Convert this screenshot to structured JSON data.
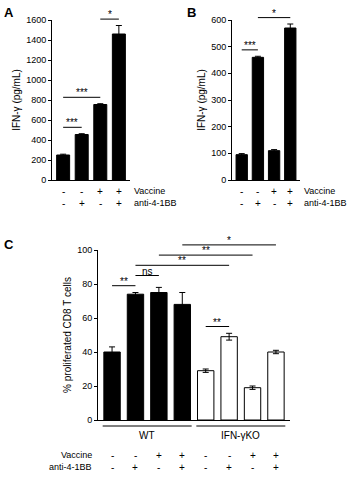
{
  "chart_data": [
    {
      "type": "bar",
      "title": "A",
      "y_label": "IFN-γ (pg/mL)",
      "categories": [
        null,
        null,
        null,
        null
      ],
      "values": [
        250,
        455,
        755,
        1460
      ],
      "errors": [
        8,
        8,
        8,
        85
      ],
      "color": "#000000",
      "grid": false,
      "ylim": [
        0,
        1600
      ],
      "yticks": [
        0,
        200,
        400,
        600,
        800,
        1000,
        1200,
        1400,
        1600
      ],
      "condition_rows": [
        {
          "label": "Vaccine",
          "marks": [
            "-",
            "-",
            "+",
            "+"
          ]
        },
        {
          "label": "anti-4-1BB",
          "marks": [
            "-",
            "+",
            "-",
            "+"
          ]
        }
      ],
      "comparisons": [
        {
          "from": 0,
          "to": 1,
          "label": "***"
        },
        {
          "from": 0,
          "to": 2,
          "label": "***"
        },
        {
          "from": 2,
          "to": 3,
          "label": "*"
        }
      ]
    },
    {
      "type": "bar",
      "title": "B",
      "y_label": "IFN-γ (pg/mL)",
      "categories": [
        null,
        null,
        null,
        null
      ],
      "values": [
        95,
        460,
        110,
        570
      ],
      "errors": [
        4,
        4,
        4,
        15
      ],
      "color": "#000000",
      "grid": false,
      "ylim": [
        0,
        600
      ],
      "yticks": [
        0,
        100,
        200,
        300,
        400,
        500,
        600
      ],
      "condition_rows": [
        {
          "label": "Vaccine",
          "marks": [
            "-",
            "-",
            "+",
            "+"
          ]
        },
        {
          "label": "anti-4-1BB",
          "marks": [
            "-",
            "+",
            "-",
            "+"
          ]
        }
      ],
      "comparisons": [
        {
          "from": 0,
          "to": 1,
          "label": "***"
        },
        {
          "from": 1,
          "to": 3,
          "label": "*"
        }
      ]
    },
    {
      "type": "bar",
      "title": "C",
      "y_label": "% proliferated CD8 T cells",
      "categories": [
        null,
        null,
        null,
        null,
        null,
        null,
        null,
        null
      ],
      "values": [
        40,
        74,
        75,
        68,
        29,
        49,
        19,
        40
      ],
      "errors": [
        3,
        1,
        3,
        7,
        1,
        2,
        1,
        1
      ],
      "colors": [
        "#000000",
        "#000000",
        "#000000",
        "#000000",
        "#ffffff",
        "#ffffff",
        "#ffffff",
        "#ffffff"
      ],
      "grid": false,
      "ylim": [
        0,
        100
      ],
      "yticks": [
        0,
        20,
        40,
        60,
        80,
        100
      ],
      "groups": [
        {
          "label": "WT",
          "from": 0,
          "to": 3
        },
        {
          "label": "IFN-γKO",
          "from": 4,
          "to": 7
        }
      ],
      "condition_rows": [
        {
          "label": "Vaccine",
          "marks": [
            "-",
            "-",
            "+",
            "+",
            "-",
            "-",
            "+",
            "+"
          ]
        },
        {
          "label": "anti-4-1BB",
          "marks": [
            "-",
            "+",
            "-",
            "+",
            "-",
            "+",
            "-",
            "+"
          ]
        }
      ],
      "comparisons": [
        {
          "from": 0,
          "to": 1,
          "label": "**"
        },
        {
          "from": 4,
          "to": 5,
          "label": "**"
        },
        {
          "from": 1,
          "to": 2,
          "label": "ns"
        },
        {
          "from": 1,
          "to": 5,
          "label": "**"
        },
        {
          "from": 2,
          "to": 6,
          "label": "**"
        },
        {
          "from": 3,
          "to": 7,
          "label": "*"
        }
      ]
    }
  ]
}
